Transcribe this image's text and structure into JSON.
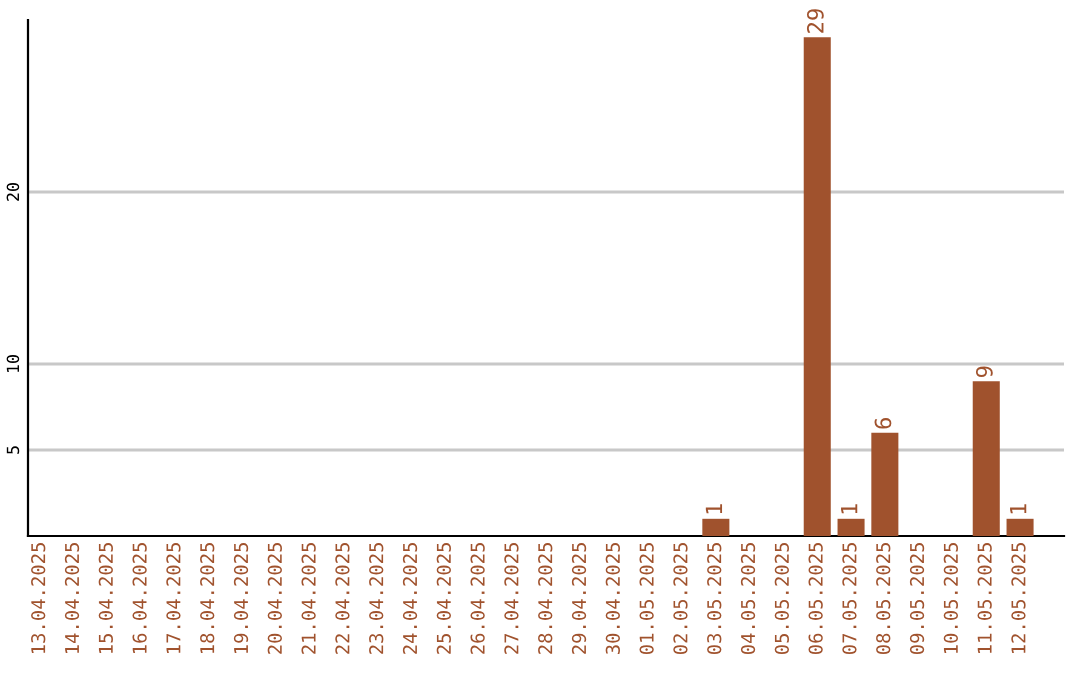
{
  "chart_data": {
    "type": "bar",
    "categories": [
      "13.04.2025",
      "14.04.2025",
      "15.04.2025",
      "16.04.2025",
      "17.04.2025",
      "18.04.2025",
      "19.04.2025",
      "20.04.2025",
      "21.04.2025",
      "22.04.2025",
      "23.04.2025",
      "24.04.2025",
      "25.04.2025",
      "26.04.2025",
      "27.04.2025",
      "28.04.2025",
      "29.04.2025",
      "30.04.2025",
      "01.05.2025",
      "02.05.2025",
      "03.05.2025",
      "04.05.2025",
      "05.05.2025",
      "06.05.2025",
      "07.05.2025",
      "08.05.2025",
      "09.05.2025",
      "10.05.2025",
      "11.05.2025",
      "12.05.2025"
    ],
    "values": [
      0,
      0,
      0,
      0,
      0,
      0,
      0,
      0,
      0,
      0,
      0,
      0,
      0,
      0,
      0,
      0,
      0,
      0,
      0,
      0,
      1,
      0,
      0,
      29,
      1,
      6,
      0,
      0,
      9,
      1
    ],
    "value_labels": [
      null,
      null,
      null,
      null,
      null,
      null,
      null,
      null,
      null,
      null,
      null,
      null,
      null,
      null,
      null,
      null,
      null,
      null,
      null,
      null,
      "1",
      null,
      null,
      "29",
      "1",
      "6",
      null,
      null,
      "9",
      "1"
    ],
    "color": "#a0522d",
    "ylim": [
      0,
      30
    ],
    "yticks": [
      5,
      10,
      20
    ],
    "grid": "y"
  }
}
